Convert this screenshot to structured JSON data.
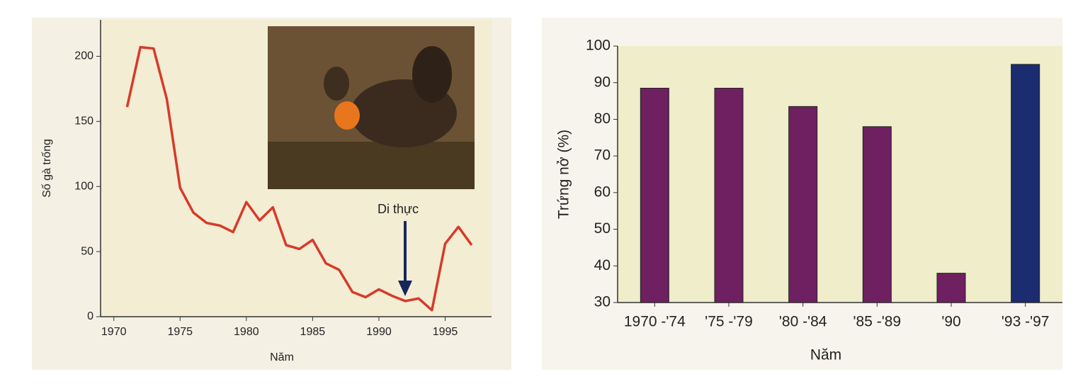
{
  "chart_data": [
    {
      "type": "line",
      "x_label": "Năm",
      "y_label": "Số gà trống",
      "annotation": "Di thực",
      "x": [
        1971,
        1972,
        1973,
        1974,
        1975,
        1976,
        1977,
        1978,
        1979,
        1980,
        1981,
        1982,
        1983,
        1984,
        1985,
        1986,
        1987,
        1988,
        1989,
        1990,
        1991,
        1992,
        1993,
        1994,
        1995,
        1996,
        1997
      ],
      "series": [
        {
          "color": "#d63a2a",
          "values": [
            161,
            207,
            206,
            167,
            99,
            80,
            72,
            70,
            65,
            88,
            74,
            84,
            55,
            52,
            59,
            41,
            36,
            19,
            15,
            21,
            16,
            12,
            14,
            5,
            56,
            69,
            55
          ]
        }
      ],
      "xlim": [
        1969,
        1998.5
      ],
      "xticks": [
        1970,
        1975,
        1980,
        1985,
        1990,
        1995
      ],
      "ylim": [
        0,
        228
      ],
      "yticks": [
        0,
        50,
        100,
        150,
        200
      ]
    },
    {
      "type": "bar",
      "x_label": "Năm",
      "y_label": "Trứng nở (%)",
      "categories": [
        "1970 -'74",
        "'75 -'79",
        "'80 -'84",
        "'85 -'89",
        "'90",
        "'93 -'97"
      ],
      "values": [
        88.5,
        88.5,
        83.5,
        78,
        38,
        95
      ],
      "colors": [
        "#6e2060",
        "#6e2060",
        "#6e2060",
        "#6e2060",
        "#6e2060",
        "#1c2c70"
      ],
      "ylim": [
        30,
        100
      ],
      "yticks": [
        30,
        40,
        50,
        60,
        70,
        80,
        90,
        100
      ]
    }
  ]
}
